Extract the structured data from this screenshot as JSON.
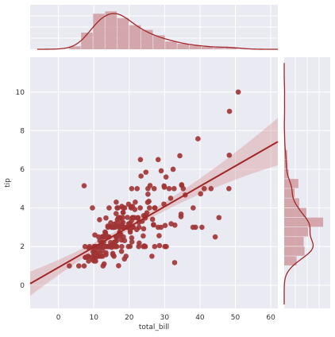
{
  "chart_data": {
    "type": "scatter",
    "subtype": "jointplot-regression",
    "xlabel": "total_bill",
    "ylabel": "tip",
    "xlim": [
      -8,
      62
    ],
    "ylim": [
      -1.2,
      11.8
    ],
    "xticks": [
      0,
      10,
      20,
      30,
      40,
      50,
      60
    ],
    "yticks": [
      0,
      2,
      4,
      6,
      8,
      10
    ],
    "grid": true,
    "colors": {
      "point": "#a03333",
      "line": "#a02828",
      "band": "#d9a0a0",
      "hist": "#cf9aa0",
      "background": "#eaeaf2"
    },
    "regression": {
      "slope": 0.105,
      "intercept": 0.92,
      "x_range": [
        -8,
        62
      ]
    },
    "points": [
      [
        16.99,
        1.01
      ],
      [
        10.34,
        1.66
      ],
      [
        21.01,
        3.5
      ],
      [
        23.68,
        3.31
      ],
      [
        24.59,
        3.61
      ],
      [
        25.29,
        4.71
      ],
      [
        8.77,
        2.0
      ],
      [
        26.88,
        3.12
      ],
      [
        15.04,
        1.96
      ],
      [
        14.78,
        3.23
      ],
      [
        10.27,
        1.71
      ],
      [
        35.26,
        5.0
      ],
      [
        15.42,
        1.57
      ],
      [
        18.43,
        3.0
      ],
      [
        14.83,
        3.02
      ],
      [
        21.58,
        3.92
      ],
      [
        10.33,
        1.67
      ],
      [
        16.29,
        3.71
      ],
      [
        16.97,
        3.5
      ],
      [
        20.65,
        3.35
      ],
      [
        17.92,
        4.08
      ],
      [
        20.29,
        2.75
      ],
      [
        15.77,
        2.23
      ],
      [
        39.42,
        7.58
      ],
      [
        19.82,
        3.18
      ],
      [
        17.81,
        2.34
      ],
      [
        13.37,
        2.0
      ],
      [
        12.69,
        2.0
      ],
      [
        21.7,
        4.3
      ],
      [
        19.65,
        3.0
      ],
      [
        9.55,
        1.45
      ],
      [
        18.35,
        2.5
      ],
      [
        15.06,
        3.0
      ],
      [
        20.69,
        2.45
      ],
      [
        17.78,
        3.27
      ],
      [
        24.06,
        3.6
      ],
      [
        16.31,
        2.0
      ],
      [
        16.93,
        3.07
      ],
      [
        18.69,
        2.31
      ],
      [
        31.27,
        5.0
      ],
      [
        16.04,
        2.24
      ],
      [
        17.46,
        2.54
      ],
      [
        13.94,
        3.06
      ],
      [
        9.68,
        1.32
      ],
      [
        30.4,
        5.6
      ],
      [
        18.29,
        3.0
      ],
      [
        22.23,
        5.0
      ],
      [
        32.4,
        6.0
      ],
      [
        28.55,
        2.05
      ],
      [
        18.04,
        3.0
      ],
      [
        12.54,
        2.5
      ],
      [
        10.29,
        2.6
      ],
      [
        34.81,
        5.2
      ],
      [
        9.94,
        1.56
      ],
      [
        25.56,
        4.34
      ],
      [
        19.49,
        3.51
      ],
      [
        38.01,
        3.0
      ],
      [
        26.41,
        1.5
      ],
      [
        11.24,
        1.76
      ],
      [
        48.27,
        6.73
      ],
      [
        20.29,
        3.21
      ],
      [
        13.81,
        2.0
      ],
      [
        11.02,
        1.98
      ],
      [
        18.29,
        3.76
      ],
      [
        17.59,
        2.64
      ],
      [
        20.08,
        3.15
      ],
      [
        16.45,
        2.47
      ],
      [
        3.07,
        1.0
      ],
      [
        20.23,
        2.01
      ],
      [
        15.01,
        2.09
      ],
      [
        12.02,
        1.97
      ],
      [
        17.07,
        3.0
      ],
      [
        26.86,
        3.14
      ],
      [
        25.28,
        5.0
      ],
      [
        14.73,
        2.2
      ],
      [
        10.51,
        1.25
      ],
      [
        17.92,
        3.08
      ],
      [
        27.2,
        4.0
      ],
      [
        22.76,
        3.0
      ],
      [
        17.29,
        2.71
      ],
      [
        19.44,
        3.0
      ],
      [
        16.66,
        3.4
      ],
      [
        10.07,
        1.83
      ],
      [
        32.68,
        5.0
      ],
      [
        15.98,
        2.03
      ],
      [
        34.83,
        5.17
      ],
      [
        13.03,
        2.0
      ],
      [
        18.28,
        4.0
      ],
      [
        24.71,
        5.85
      ],
      [
        21.16,
        3.0
      ],
      [
        28.97,
        3.0
      ],
      [
        22.49,
        3.5
      ],
      [
        5.75,
        1.0
      ],
      [
        16.32,
        4.3
      ],
      [
        22.75,
        3.25
      ],
      [
        40.17,
        4.73
      ],
      [
        27.28,
        4.0
      ],
      [
        12.03,
        1.5
      ],
      [
        21.01,
        3.0
      ],
      [
        12.46,
        1.5
      ],
      [
        11.35,
        2.5
      ],
      [
        15.38,
        3.0
      ],
      [
        44.3,
        2.5
      ],
      [
        22.42,
        3.48
      ],
      [
        20.92,
        4.08
      ],
      [
        15.36,
        1.64
      ],
      [
        20.49,
        4.06
      ],
      [
        25.21,
        4.29
      ],
      [
        18.24,
        3.76
      ],
      [
        14.31,
        4.0
      ],
      [
        14.0,
        3.0
      ],
      [
        7.25,
        1.0
      ],
      [
        38.07,
        4.0
      ],
      [
        23.95,
        2.55
      ],
      [
        25.71,
        4.0
      ],
      [
        17.31,
        3.5
      ],
      [
        29.93,
        5.07
      ],
      [
        10.65,
        1.5
      ],
      [
        12.43,
        1.8
      ],
      [
        24.08,
        2.92
      ],
      [
        11.69,
        2.31
      ],
      [
        13.42,
        1.68
      ],
      [
        14.26,
        2.5
      ],
      [
        15.95,
        2.0
      ],
      [
        12.48,
        2.52
      ],
      [
        29.8,
        4.2
      ],
      [
        8.52,
        1.48
      ],
      [
        14.52,
        2.0
      ],
      [
        11.38,
        2.0
      ],
      [
        22.82,
        2.18
      ],
      [
        19.08,
        1.5
      ],
      [
        20.27,
        2.83
      ],
      [
        11.17,
        1.5
      ],
      [
        12.26,
        2.0
      ],
      [
        18.26,
        3.25
      ],
      [
        8.51,
        1.25
      ],
      [
        10.33,
        2.0
      ],
      [
        14.15,
        2.0
      ],
      [
        16.0,
        2.0
      ],
      [
        13.16,
        2.75
      ],
      [
        17.47,
        3.5
      ],
      [
        34.3,
        6.7
      ],
      [
        41.19,
        5.0
      ],
      [
        27.05,
        5.0
      ],
      [
        16.43,
        2.3
      ],
      [
        8.35,
        1.5
      ],
      [
        18.64,
        1.36
      ],
      [
        11.87,
        1.63
      ],
      [
        9.78,
        1.73
      ],
      [
        7.51,
        2.0
      ],
      [
        14.07,
        2.5
      ],
      [
        13.13,
        2.0
      ],
      [
        17.26,
        2.74
      ],
      [
        24.55,
        2.0
      ],
      [
        19.77,
        2.0
      ],
      [
        29.85,
        5.14
      ],
      [
        48.17,
        5.0
      ],
      [
        25.0,
        3.75
      ],
      [
        13.39,
        2.61
      ],
      [
        16.49,
        2.0
      ],
      [
        21.5,
        3.5
      ],
      [
        12.66,
        2.5
      ],
      [
        16.21,
        2.0
      ],
      [
        13.81,
        2.0
      ],
      [
        17.51,
        3.0
      ],
      [
        24.52,
        3.48
      ],
      [
        20.76,
        2.24
      ],
      [
        31.71,
        4.5
      ],
      [
        10.59,
        1.61
      ],
      [
        10.63,
        2.0
      ],
      [
        50.81,
        10.0
      ],
      [
        15.81,
        3.16
      ],
      [
        7.25,
        5.15
      ],
      [
        31.85,
        3.18
      ],
      [
        16.82,
        4.0
      ],
      [
        32.9,
        3.11
      ],
      [
        17.89,
        2.0
      ],
      [
        14.48,
        2.0
      ],
      [
        9.6,
        4.0
      ],
      [
        34.63,
        3.55
      ],
      [
        34.65,
        3.68
      ],
      [
        23.33,
        5.65
      ],
      [
        45.35,
        3.5
      ],
      [
        23.17,
        6.5
      ],
      [
        40.55,
        3.0
      ],
      [
        20.69,
        5.0
      ],
      [
        20.9,
        3.5
      ],
      [
        30.46,
        2.0
      ],
      [
        18.15,
        3.5
      ],
      [
        23.1,
        4.0
      ],
      [
        15.69,
        1.5
      ],
      [
        19.81,
        4.19
      ],
      [
        28.44,
        2.56
      ],
      [
        15.48,
        2.02
      ],
      [
        16.58,
        4.0
      ],
      [
        7.56,
        1.44
      ],
      [
        10.34,
        2.0
      ],
      [
        43.11,
        5.0
      ],
      [
        13.0,
        2.0
      ],
      [
        13.51,
        2.0
      ],
      [
        18.71,
        4.0
      ],
      [
        12.74,
        2.01
      ],
      [
        20.53,
        4.0
      ],
      [
        16.47,
        3.23
      ],
      [
        26.59,
        3.41
      ],
      [
        38.73,
        3.0
      ],
      [
        24.27,
        2.03
      ],
      [
        12.76,
        2.23
      ],
      [
        30.06,
        2.0
      ],
      [
        25.89,
        5.16
      ],
      [
        48.33,
        9.0
      ],
      [
        13.27,
        2.5
      ],
      [
        28.17,
        6.5
      ],
      [
        12.9,
        1.1
      ],
      [
        28.15,
        3.0
      ],
      [
        11.59,
        1.5
      ],
      [
        7.74,
        1.44
      ],
      [
        30.14,
        3.09
      ],
      [
        12.16,
        2.2
      ],
      [
        13.42,
        3.48
      ],
      [
        8.58,
        1.92
      ],
      [
        15.98,
        3.0
      ],
      [
        13.42,
        1.58
      ],
      [
        16.27,
        2.5
      ],
      [
        10.09,
        2.0
      ],
      [
        20.45,
        3.0
      ],
      [
        13.28,
        2.72
      ],
      [
        22.12,
        2.88
      ],
      [
        24.01,
        2.0
      ],
      [
        15.69,
        3.0
      ],
      [
        11.61,
        3.39
      ],
      [
        10.77,
        1.47
      ],
      [
        15.53,
        3.0
      ],
      [
        10.07,
        1.25
      ],
      [
        12.6,
        1.0
      ],
      [
        32.83,
        1.17
      ],
      [
        35.83,
        4.67
      ],
      [
        29.03,
        5.92
      ],
      [
        27.18,
        2.0
      ],
      [
        22.67,
        2.0
      ],
      [
        17.82,
        1.75
      ],
      [
        18.78,
        3.0
      ]
    ],
    "x_marginal": {
      "bin_edges": [
        3,
        6.4,
        9.8,
        13.2,
        16.6,
        20,
        23.4,
        26.8,
        30.2,
        33.6,
        37,
        40.4,
        43.8,
        47.2,
        50.6
      ],
      "density": [
        0.0044,
        0.0247,
        0.0527,
        0.0563,
        0.0462,
        0.0357,
        0.0288,
        0.0207,
        0.0115,
        0.0081,
        0.0054,
        0.0035,
        0.0021,
        0.0022
      ],
      "kde_color": "#a02828"
    },
    "y_marginal": {
      "bin_edges": [
        1.0,
        1.5,
        2.0,
        2.5,
        3.0,
        3.5,
        4.0,
        4.5,
        5.0,
        5.5,
        6.0,
        6.5,
        7.0,
        7.5,
        8.0,
        8.5,
        9.0,
        9.5,
        10.0
      ],
      "density": [
        0.14,
        0.23,
        0.22,
        0.27,
        0.44,
        0.25,
        0.17,
        0.12,
        0.16,
        0.05,
        0.04,
        0.035,
        0.01,
        0.01,
        0.005,
        0.0,
        0.005,
        0.005
      ],
      "kde_color": "#a02828"
    }
  }
}
